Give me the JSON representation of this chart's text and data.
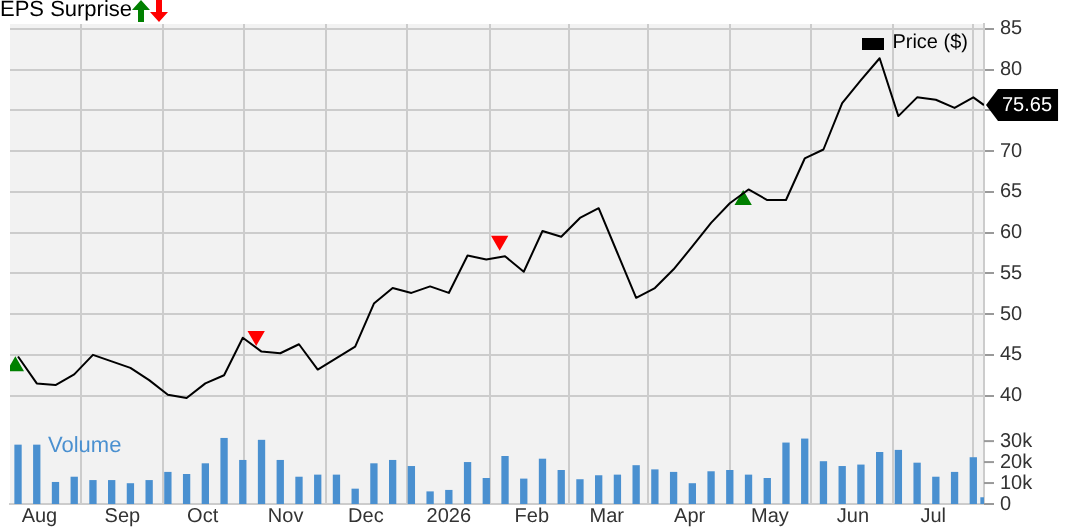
{
  "chart_data": {
    "type": "line",
    "legend_title": "EPS Surprise",
    "legend": "top right",
    "grid": true,
    "x": [
      "2025-07-24",
      "2025-07-31",
      "2025-08-07",
      "2025-08-14",
      "2025-08-21",
      "2025-08-28",
      "2025-09-04",
      "2025-09-11",
      "2025-09-18",
      "2025-09-25",
      "2025-10-02",
      "2025-10-09",
      "2025-10-16",
      "2025-10-23",
      "2025-10-30",
      "2025-11-06",
      "2025-11-13",
      "2025-11-20",
      "2025-11-27",
      "2025-12-04",
      "2025-12-11",
      "2025-12-18",
      "2025-12-25",
      "2026-01-01",
      "2026-01-08",
      "2026-01-15",
      "2026-01-22",
      "2026-01-29",
      "2026-02-05",
      "2026-02-12",
      "2026-02-19",
      "2026-02-26",
      "2026-03-05",
      "2026-03-12",
      "2026-03-19",
      "2026-03-26",
      "2026-04-02",
      "2026-04-09",
      "2026-04-16",
      "2026-04-23",
      "2026-04-30",
      "2026-05-07",
      "2026-05-14",
      "2026-05-21",
      "2026-05-28",
      "2026-06-04",
      "2026-06-11",
      "2026-06-18",
      "2026-06-25",
      "2026-07-02",
      "2026-07-09",
      "2026-07-16",
      "2026-07-20"
    ],
    "xlim": [
      "2025-07-21",
      "2026-07-20"
    ],
    "xticks": [
      {
        "value": "2025-08-01",
        "label": "Aug"
      },
      {
        "value": "2025-09-01",
        "label": "Sep"
      },
      {
        "value": "2025-10-01",
        "label": "Oct"
      },
      {
        "value": "2025-11-01",
        "label": "Nov"
      },
      {
        "value": "2025-12-01",
        "label": "Dec"
      },
      {
        "value": "2026-01-01",
        "label": "2026"
      },
      {
        "value": "2026-02-01",
        "label": "Feb"
      },
      {
        "value": "2026-03-01",
        "label": "Mar"
      },
      {
        "value": "2026-04-01",
        "label": "Apr"
      },
      {
        "value": "2026-05-01",
        "label": "May"
      },
      {
        "value": "2026-06-01",
        "label": "Jun"
      },
      {
        "value": "2026-07-01",
        "label": "Jul"
      }
    ],
    "ylim": [
      26.7,
      85.6
    ],
    "yticks": [
      40,
      45,
      50,
      55,
      60,
      65,
      70,
      {
        "value": 75,
        "label": null
      },
      80,
      85
    ],
    "y2lim": [
      0,
      229000
    ],
    "y2ticks": [
      {
        "value": 0,
        "label": "0"
      },
      {
        "value": 10000,
        "label": "10k"
      },
      {
        "value": 20000,
        "label": "20k"
      },
      {
        "value": 30000,
        "label": "30k"
      }
    ],
    "series": [
      {
        "name": "Price ($)",
        "color": "#000000",
        "values": [
          44.8,
          41.5,
          41.3,
          42.6,
          45.0,
          44.2,
          43.4,
          41.9,
          40.1,
          39.7,
          41.5,
          42.5,
          47.1,
          45.4,
          45.2,
          46.3,
          43.2,
          44.6,
          46.0,
          51.3,
          53.2,
          52.6,
          53.4,
          52.6,
          57.2,
          56.7,
          57.1,
          55.2,
          60.2,
          59.5,
          61.8,
          63.0,
          57.5,
          52.0,
          53.2,
          55.5,
          58.3,
          61.2,
          63.6,
          65.3,
          64.0,
          64.0,
          69.1,
          70.2,
          75.9,
          78.7,
          81.4,
          74.3,
          76.6,
          76.3,
          75.3,
          76.6,
          75.65
        ],
        "value_labels": [
          null,
          null,
          null,
          null,
          null,
          null,
          null,
          null,
          null,
          null,
          null,
          null,
          null,
          null,
          null,
          null,
          null,
          null,
          null,
          null,
          null,
          null,
          null,
          null,
          null,
          null,
          null,
          null,
          null,
          null,
          null,
          null,
          null,
          null,
          null,
          null,
          null,
          null,
          null,
          null,
          null,
          null,
          null,
          null,
          null,
          null,
          null,
          null,
          null,
          null,
          null,
          null,
          "75.65"
        ]
      },
      {
        "type": "scatter",
        "color": "#008000",
        "marker": "triangle",
        "x": [
          "2025-07-23",
          "2026-04-21"
        ],
        "values": [
          43.6,
          64.0
        ]
      },
      {
        "type": "scatter",
        "color": "#ff0000",
        "marker": "triangle",
        "x": [
          "2025-10-21",
          "2026-01-20"
        ],
        "values": [
          47.3,
          59.0
        ]
      },
      {
        "name": "Volume",
        "type": "bar",
        "axis": "y2",
        "color": "#4a90d0",
        "values": [
          28000,
          28000,
          10200,
          12700,
          11100,
          11100,
          9600,
          11100,
          15000,
          14000,
          19100,
          31200,
          20700,
          30300,
          20700,
          12700,
          13700,
          13700,
          7000,
          19100,
          20700,
          17800,
          5700,
          6400,
          19700,
          12100,
          22600,
          11800,
          21300,
          15900,
          11500,
          13400,
          13700,
          18200,
          16200,
          15000,
          9600,
          15300,
          15900,
          13700,
          12100,
          29000,
          30900,
          20100,
          17800,
          18500,
          24500,
          25500,
          19400,
          12700,
          15000,
          22000,
          2900
        ]
      }
    ]
  }
}
